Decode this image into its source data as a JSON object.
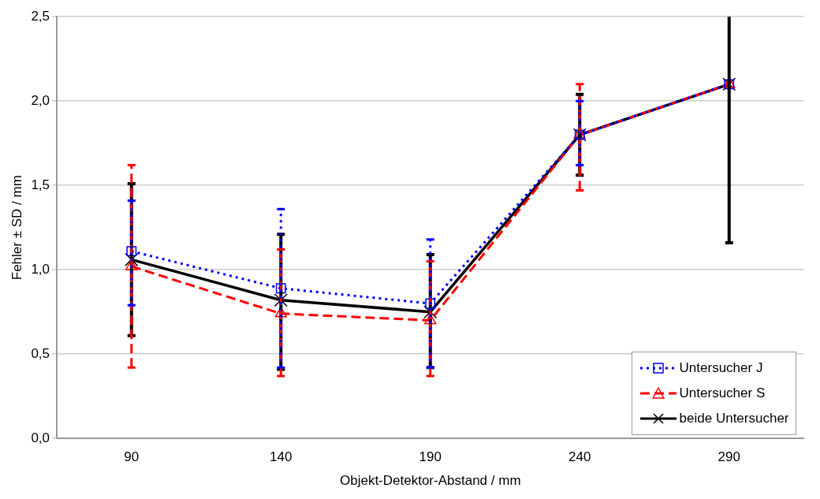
{
  "chart_data": {
    "type": "line",
    "xlabel": "Objekt-Detektor-Abstand / mm",
    "ylabel": "Fehler ± SD / mm",
    "categories": [
      "90",
      "140",
      "190",
      "240",
      "290"
    ],
    "series": [
      {
        "name": "Untersucher J",
        "color": "#0000ff",
        "marker": "square",
        "line_style": "dotted",
        "values": [
          1.11,
          0.89,
          0.8,
          1.8,
          2.1
        ],
        "errors": [
          [
            0.79,
            1.41
          ],
          [
            0.42,
            1.36
          ],
          [
            0.42,
            1.18
          ],
          [
            1.62,
            2.0
          ],
          null
        ]
      },
      {
        "name": "Untersucher S",
        "color": "#ff0000",
        "marker": "triangle",
        "line_style": "dashed",
        "values": [
          1.02,
          0.74,
          0.7,
          1.8,
          2.1
        ],
        "errors": [
          [
            0.42,
            1.62
          ],
          [
            0.37,
            1.12
          ],
          [
            0.37,
            1.05
          ],
          [
            1.47,
            2.1
          ],
          null
        ]
      },
      {
        "name": "beide Untersucher",
        "color": "#000000",
        "marker": "cross",
        "line_style": "solid",
        "values": [
          1.06,
          0.82,
          0.75,
          1.8,
          2.1
        ],
        "errors": [
          [
            0.61,
            1.51
          ],
          [
            0.41,
            1.21
          ],
          [
            0.42,
            1.09
          ],
          [
            1.56,
            2.04
          ],
          [
            1.16,
            2.5
          ]
        ]
      }
    ],
    "ylim": [
      0,
      2.5
    ],
    "yticks": [
      {
        "value": 0,
        "label": "0,0"
      },
      {
        "value": 0.5,
        "label": "0,5"
      },
      {
        "value": 1,
        "label": "1,0"
      },
      {
        "value": 1.5,
        "label": "1,5"
      },
      {
        "value": 2,
        "label": "2,0"
      },
      {
        "value": 2.5,
        "label": "2,5"
      }
    ],
    "grid": "y",
    "legend": "bottom right"
  }
}
